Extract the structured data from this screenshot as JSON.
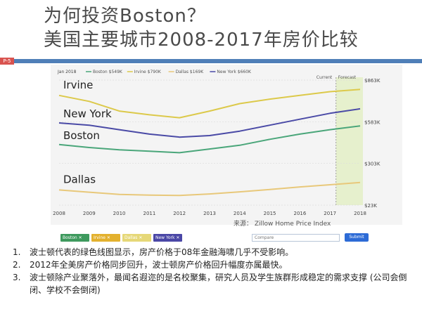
{
  "slide": {
    "title_line1": "为何投资Boston？",
    "title_line2": "美国主要城市2008-2017年房价比较",
    "page_tag": "P-5"
  },
  "colors": {
    "Irvine": "#dcc94a",
    "New York": "#4a4aa6",
    "Boston": "#4aa67a",
    "Dallas": "#e8c87a",
    "accent": "#4f7fb8"
  },
  "source": "来源： Zillow Home Price Index",
  "legend_chips": [
    {
      "name": "Boston",
      "color": "#3e9a5e"
    },
    {
      "name": "Irvine",
      "color": "#e3b12e"
    },
    {
      "name": "Dallas",
      "color": "#e6d878"
    },
    {
      "name": "New York",
      "color": "#4a47a6"
    }
  ],
  "compare_placeholder": "Compare",
  "submit_label": "Submit",
  "notes": [
    "波士顿代表的绿色线图显示，房产价格于08年金融海啸几乎不受影响。",
    "2012年全美房产价格同步回升，波士顿房产价格回升幅度亦属最快。",
    "波士顿除产业聚落外，最闻名遐迩的是名校聚集，研究人员及学生族群形成稳定的需求支撑 (公司会倒闭、学校不会倒闭)"
  ],
  "chart_data": {
    "type": "line",
    "x": [
      2008,
      2009,
      2010,
      2011,
      2012,
      2013,
      2014,
      2015,
      2016,
      2017,
      2018
    ],
    "x_ticks": [
      "2008",
      "2009",
      "2010",
      "2011",
      "2012",
      "2013",
      "2014",
      "2015",
      "2016",
      "2017",
      "2018"
    ],
    "y_ticks": [
      "$863K",
      "$583K",
      "$303K",
      "$23K"
    ],
    "y_tick_values": [
      863,
      583,
      303,
      23
    ],
    "ylim": [
      23,
      863
    ],
    "header_date": "Jan 2018",
    "header_entries": [
      {
        "label": "Boston $549K",
        "color": "#4aa67a"
      },
      {
        "label": "Irvine $790K",
        "color": "#dcc94a"
      },
      {
        "label": "Dallas $169K",
        "color": "#e8c87a"
      },
      {
        "label": "New York $660K",
        "color": "#4a4aa6"
      }
    ],
    "current_label": "Current",
    "forecast_label": "Forecast",
    "forecast_start": 2017.2,
    "forecast_end": 2018.0,
    "series": [
      {
        "name": "Irvine",
        "label": "Irvine",
        "values": [
          760,
          720,
          655,
          630,
          610,
          655,
          705,
          735,
          760,
          785,
          800
        ]
      },
      {
        "name": "New York",
        "label": "New York",
        "values": [
          575,
          560,
          530,
          500,
          480,
          490,
          520,
          560,
          600,
          640,
          670
        ]
      },
      {
        "name": "Boston",
        "label": "Boston",
        "values": [
          430,
          410,
          395,
          385,
          375,
          400,
          425,
          465,
          500,
          530,
          555
        ]
      },
      {
        "name": "Dallas",
        "label": "Dallas",
        "values": [
          125,
          110,
          95,
          90,
          88,
          98,
          112,
          128,
          145,
          160,
          175
        ]
      }
    ]
  }
}
